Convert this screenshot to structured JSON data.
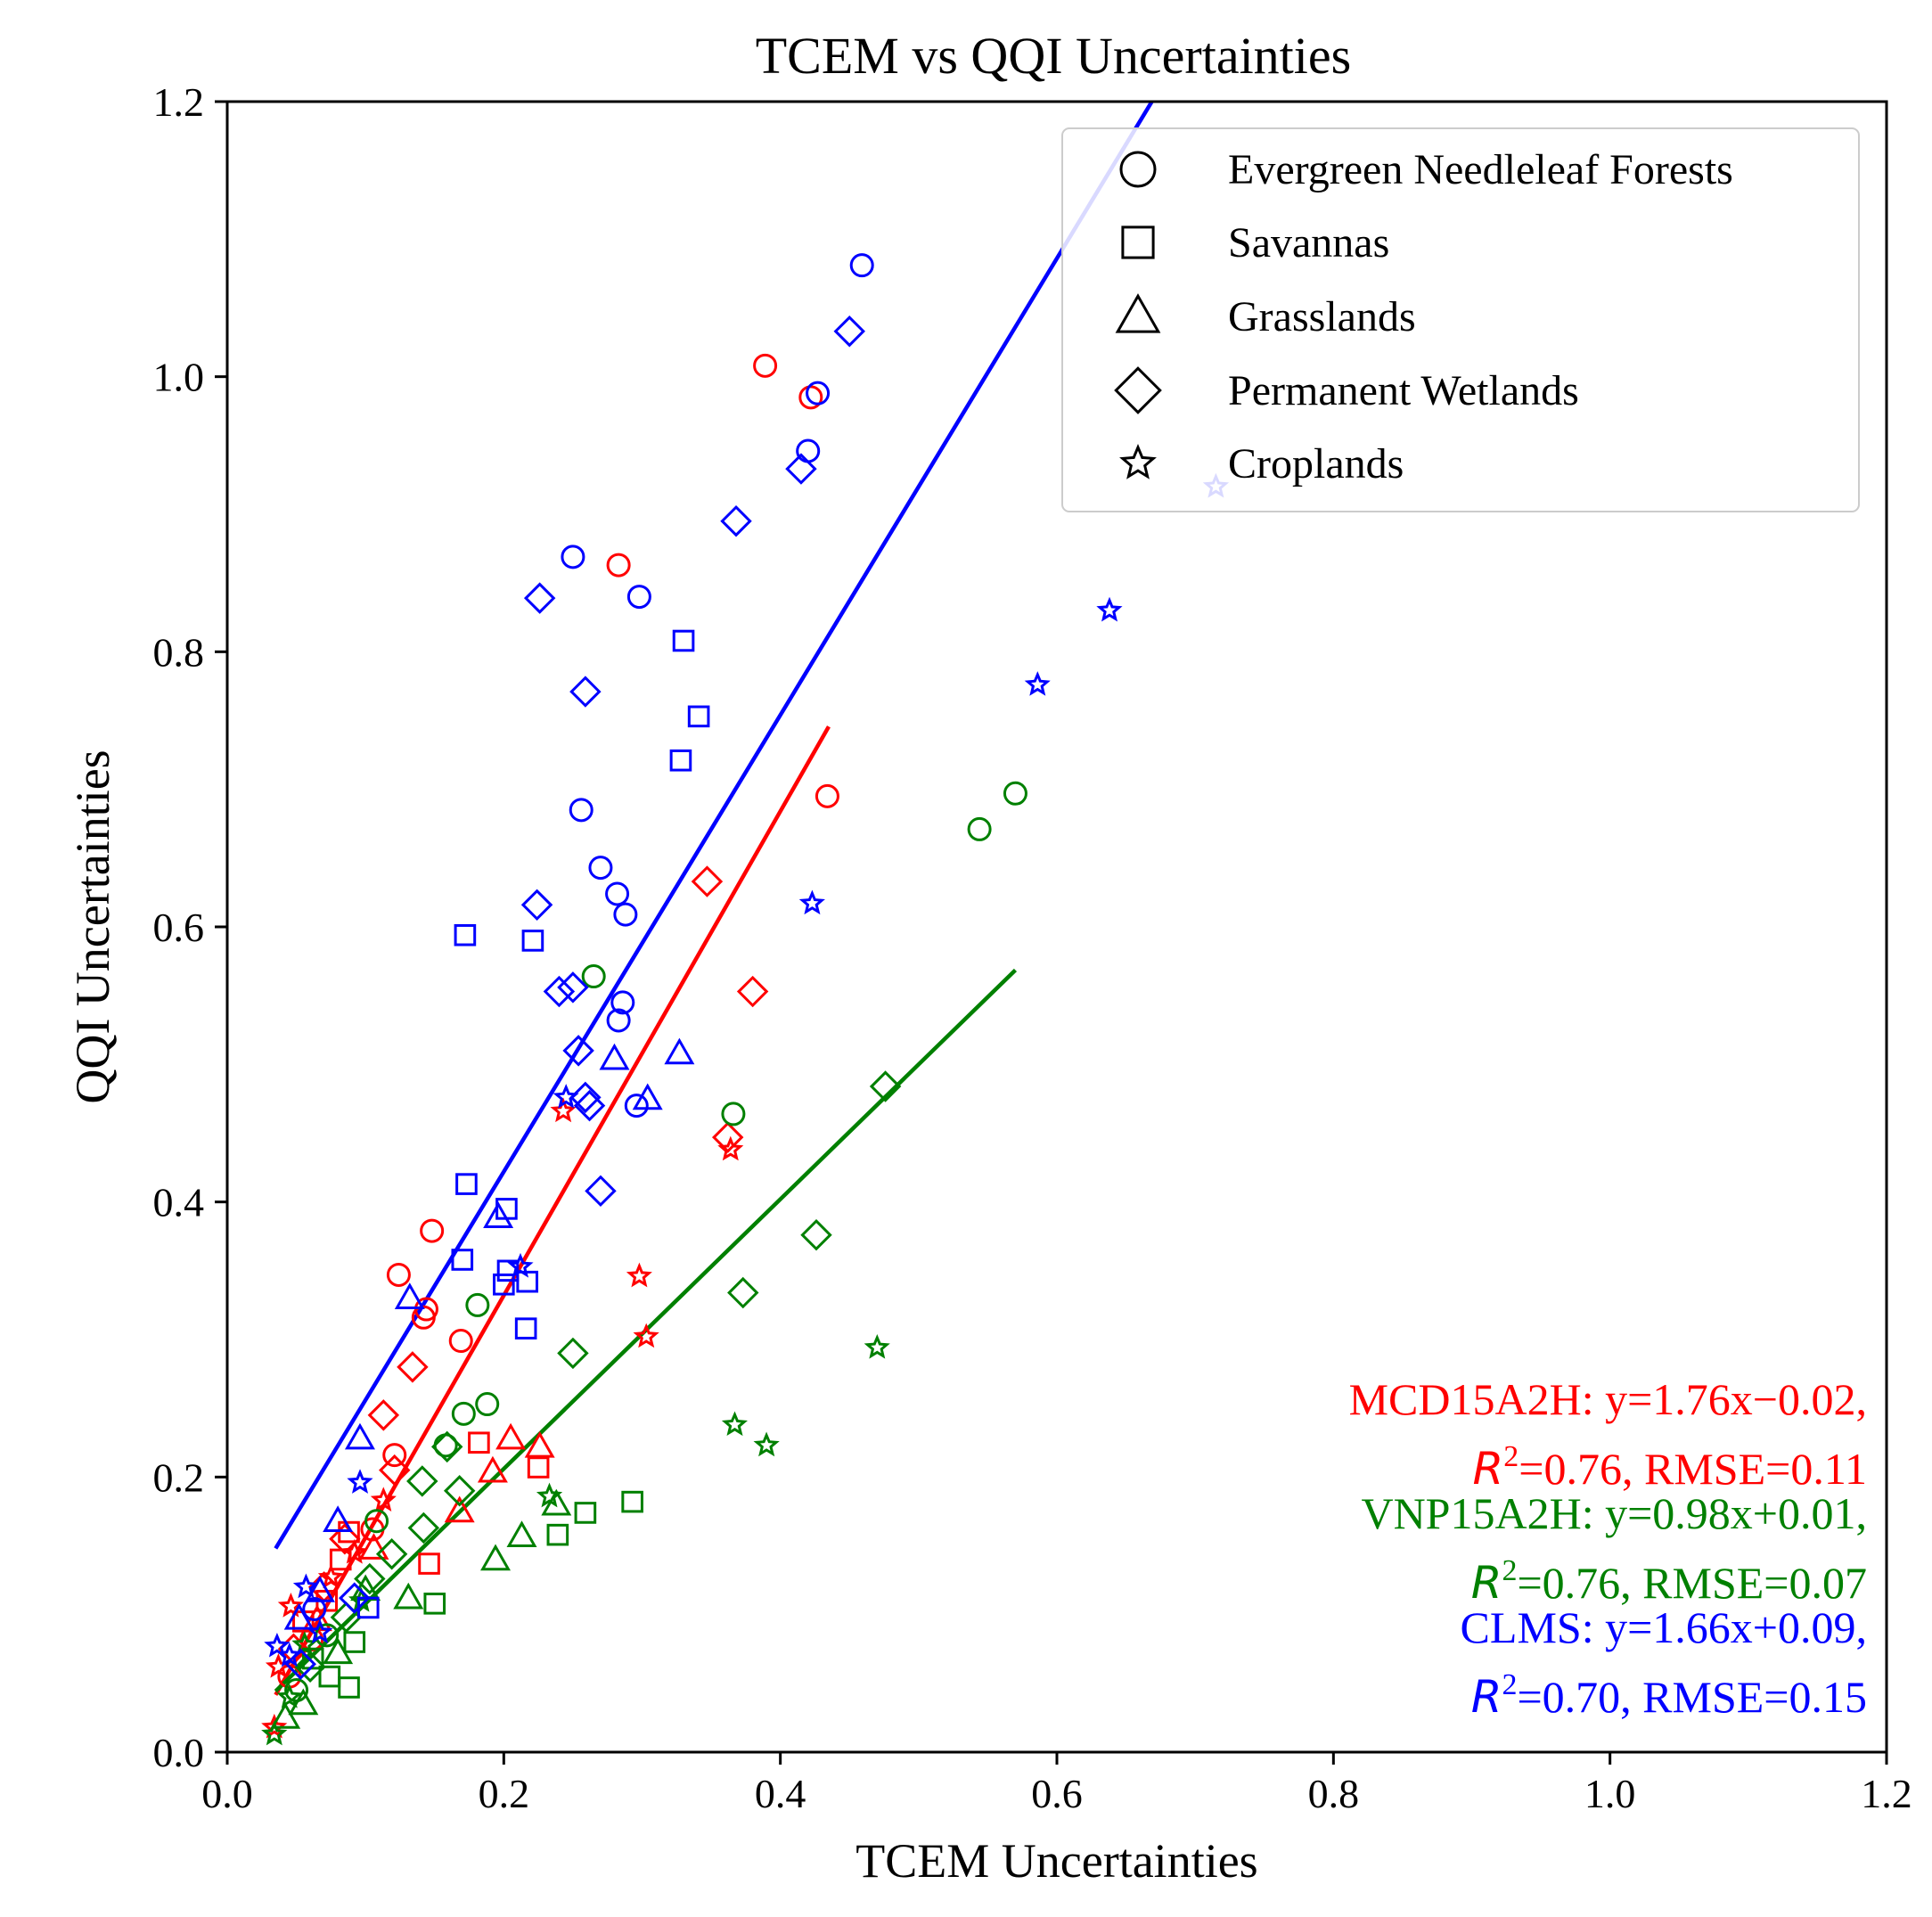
{
  "chart_data": {
    "type": "scatter",
    "title": "TCEM vs QQI Uncertainties",
    "xlabel": "TCEM Uncertainties",
    "ylabel": "QQI Uncertainties",
    "xlim": [
      0.0,
      1.2
    ],
    "ylim": [
      0.0,
      1.2
    ],
    "x_ticks": [
      "0.0",
      "0.2",
      "0.4",
      "0.6",
      "0.8",
      "1.0",
      "1.2"
    ],
    "y_ticks": [
      "0.0",
      "0.2",
      "0.4",
      "0.6",
      "0.8",
      "1.0",
      "1.2"
    ],
    "grid": false,
    "legend_position": "top-right",
    "legend": [
      {
        "label": "Evergreen Needleleaf Forests",
        "marker": "circle"
      },
      {
        "label": "Savannas",
        "marker": "square"
      },
      {
        "label": "Grasslands",
        "marker": "triangle"
      },
      {
        "label": "Permanent Wetlands",
        "marker": "diamond"
      },
      {
        "label": "Croplands",
        "marker": "star"
      }
    ],
    "series": [
      {
        "name": "MCD15A2H",
        "color": "#ff0000",
        "fit": {
          "slope": 1.76,
          "intercept": -0.02,
          "x_range": [
            0.035,
            0.435
          ]
        },
        "stats_line1": "MCD15A2H: y=1.76x−0.02,",
        "stats_r2_value": "=0.76, RMSE=0.11",
        "points": [
          {
            "x": 0.389,
            "y": 1.008,
            "m": "circle"
          },
          {
            "x": 0.422,
            "y": 0.985,
            "m": "circle"
          },
          {
            "x": 0.283,
            "y": 0.863,
            "m": "circle"
          },
          {
            "x": 0.434,
            "y": 0.695,
            "m": "circle"
          },
          {
            "x": 0.148,
            "y": 0.379,
            "m": "circle"
          },
          {
            "x": 0.124,
            "y": 0.347,
            "m": "circle"
          },
          {
            "x": 0.144,
            "y": 0.322,
            "m": "circle"
          },
          {
            "x": 0.142,
            "y": 0.316,
            "m": "circle"
          },
          {
            "x": 0.169,
            "y": 0.299,
            "m": "circle"
          },
          {
            "x": 0.121,
            "y": 0.216,
            "m": "circle"
          },
          {
            "x": 0.105,
            "y": 0.162,
            "m": "circle"
          },
          {
            "x": 0.061,
            "y": 0.082,
            "m": "circle"
          },
          {
            "x": 0.045,
            "y": 0.055,
            "m": "circle"
          },
          {
            "x": 0.182,
            "y": 0.225,
            "m": "square"
          },
          {
            "x": 0.225,
            "y": 0.207,
            "m": "square"
          },
          {
            "x": 0.146,
            "y": 0.137,
            "m": "square"
          },
          {
            "x": 0.082,
            "y": 0.14,
            "m": "square"
          },
          {
            "x": 0.088,
            "y": 0.16,
            "m": "square"
          },
          {
            "x": 0.072,
            "y": 0.11,
            "m": "square"
          },
          {
            "x": 0.055,
            "y": 0.095,
            "m": "square"
          },
          {
            "x": 0.205,
            "y": 0.228,
            "m": "triangle"
          },
          {
            "x": 0.226,
            "y": 0.222,
            "m": "triangle"
          },
          {
            "x": 0.192,
            "y": 0.204,
            "m": "triangle"
          },
          {
            "x": 0.168,
            "y": 0.175,
            "m": "triangle"
          },
          {
            "x": 0.106,
            "y": 0.148,
            "m": "triangle"
          },
          {
            "x": 0.065,
            "y": 0.096,
            "m": "triangle"
          },
          {
            "x": 0.347,
            "y": 0.633,
            "m": "diamond"
          },
          {
            "x": 0.38,
            "y": 0.553,
            "m": "diamond"
          },
          {
            "x": 0.362,
            "y": 0.447,
            "m": "diamond"
          },
          {
            "x": 0.134,
            "y": 0.28,
            "m": "diamond"
          },
          {
            "x": 0.113,
            "y": 0.245,
            "m": "diamond"
          },
          {
            "x": 0.121,
            "y": 0.205,
            "m": "diamond"
          },
          {
            "x": 0.085,
            "y": 0.155,
            "m": "diamond"
          },
          {
            "x": 0.07,
            "y": 0.12,
            "m": "diamond"
          },
          {
            "x": 0.048,
            "y": 0.075,
            "m": "diamond"
          },
          {
            "x": 0.243,
            "y": 0.466,
            "m": "star"
          },
          {
            "x": 0.364,
            "y": 0.438,
            "m": "star"
          },
          {
            "x": 0.298,
            "y": 0.346,
            "m": "star"
          },
          {
            "x": 0.303,
            "y": 0.302,
            "m": "star"
          },
          {
            "x": 0.113,
            "y": 0.183,
            "m": "star"
          },
          {
            "x": 0.092,
            "y": 0.145,
            "m": "star"
          },
          {
            "x": 0.075,
            "y": 0.127,
            "m": "star"
          },
          {
            "x": 0.046,
            "y": 0.106,
            "m": "star"
          },
          {
            "x": 0.037,
            "y": 0.062,
            "m": "star"
          },
          {
            "x": 0.034,
            "y": 0.018,
            "m": "star"
          }
        ]
      },
      {
        "name": "VNP15A2H",
        "color": "#008000",
        "fit": {
          "slope": 0.98,
          "intercept": 0.01,
          "x_range": [
            0.035,
            0.57
          ]
        },
        "stats_line1": "VNP15A2H: y=0.98x+0.01,",
        "stats_r2_value": "=0.76, RMSE=0.07",
        "points": [
          {
            "x": 0.57,
            "y": 0.697,
            "m": "circle"
          },
          {
            "x": 0.544,
            "y": 0.671,
            "m": "circle"
          },
          {
            "x": 0.265,
            "y": 0.564,
            "m": "circle"
          },
          {
            "x": 0.366,
            "y": 0.464,
            "m": "circle"
          },
          {
            "x": 0.181,
            "y": 0.325,
            "m": "circle"
          },
          {
            "x": 0.188,
            "y": 0.253,
            "m": "circle"
          },
          {
            "x": 0.171,
            "y": 0.246,
            "m": "circle"
          },
          {
            "x": 0.158,
            "y": 0.223,
            "m": "circle"
          },
          {
            "x": 0.108,
            "y": 0.168,
            "m": "circle"
          },
          {
            "x": 0.072,
            "y": 0.085,
            "m": "circle"
          },
          {
            "x": 0.05,
            "y": 0.045,
            "m": "circle"
          },
          {
            "x": 0.293,
            "y": 0.182,
            "m": "square"
          },
          {
            "x": 0.259,
            "y": 0.174,
            "m": "square"
          },
          {
            "x": 0.239,
            "y": 0.158,
            "m": "square"
          },
          {
            "x": 0.15,
            "y": 0.108,
            "m": "square"
          },
          {
            "x": 0.092,
            "y": 0.08,
            "m": "square"
          },
          {
            "x": 0.088,
            "y": 0.047,
            "m": "square"
          },
          {
            "x": 0.074,
            "y": 0.055,
            "m": "square"
          },
          {
            "x": 0.062,
            "y": 0.068,
            "m": "square"
          },
          {
            "x": 0.238,
            "y": 0.18,
            "m": "triangle"
          },
          {
            "x": 0.213,
            "y": 0.157,
            "m": "triangle"
          },
          {
            "x": 0.194,
            "y": 0.14,
            "m": "triangle"
          },
          {
            "x": 0.131,
            "y": 0.112,
            "m": "triangle"
          },
          {
            "x": 0.1,
            "y": 0.118,
            "m": "triangle"
          },
          {
            "x": 0.08,
            "y": 0.072,
            "m": "triangle"
          },
          {
            "x": 0.055,
            "y": 0.035,
            "m": "triangle"
          },
          {
            "x": 0.042,
            "y": 0.025,
            "m": "triangle"
          },
          {
            "x": 0.476,
            "y": 0.484,
            "m": "diamond"
          },
          {
            "x": 0.426,
            "y": 0.376,
            "m": "diamond"
          },
          {
            "x": 0.373,
            "y": 0.334,
            "m": "diamond"
          },
          {
            "x": 0.25,
            "y": 0.29,
            "m": "diamond"
          },
          {
            "x": 0.159,
            "y": 0.222,
            "m": "diamond"
          },
          {
            "x": 0.141,
            "y": 0.197,
            "m": "diamond"
          },
          {
            "x": 0.168,
            "y": 0.19,
            "m": "diamond"
          },
          {
            "x": 0.142,
            "y": 0.163,
            "m": "diamond"
          },
          {
            "x": 0.119,
            "y": 0.144,
            "m": "diamond"
          },
          {
            "x": 0.103,
            "y": 0.126,
            "m": "diamond"
          },
          {
            "x": 0.086,
            "y": 0.098,
            "m": "diamond"
          },
          {
            "x": 0.06,
            "y": 0.062,
            "m": "diamond"
          },
          {
            "x": 0.47,
            "y": 0.294,
            "m": "star"
          },
          {
            "x": 0.367,
            "y": 0.238,
            "m": "star"
          },
          {
            "x": 0.39,
            "y": 0.223,
            "m": "star"
          },
          {
            "x": 0.233,
            "y": 0.186,
            "m": "star"
          },
          {
            "x": 0.097,
            "y": 0.11,
            "m": "star"
          },
          {
            "x": 0.056,
            "y": 0.078,
            "m": "star"
          },
          {
            "x": 0.045,
            "y": 0.04,
            "m": "star"
          },
          {
            "x": 0.034,
            "y": 0.013,
            "m": "star"
          }
        ]
      },
      {
        "name": "CLMS",
        "color": "#0000ff",
        "fit": {
          "slope": 1.66,
          "intercept": 0.09,
          "x_range": [
            0.035,
            0.673
          ]
        },
        "stats_line1": "CLMS: y=1.66x+0.09,",
        "stats_r2_value": "=0.70, RMSE=0.15",
        "points": [
          {
            "x": 0.459,
            "y": 1.081,
            "m": "circle"
          },
          {
            "x": 0.427,
            "y": 0.988,
            "m": "circle"
          },
          {
            "x": 0.42,
            "y": 0.946,
            "m": "circle"
          },
          {
            "x": 0.25,
            "y": 0.869,
            "m": "circle"
          },
          {
            "x": 0.298,
            "y": 0.84,
            "m": "circle"
          },
          {
            "x": 0.256,
            "y": 0.685,
            "m": "circle"
          },
          {
            "x": 0.27,
            "y": 0.643,
            "m": "circle"
          },
          {
            "x": 0.282,
            "y": 0.624,
            "m": "circle"
          },
          {
            "x": 0.288,
            "y": 0.609,
            "m": "circle"
          },
          {
            "x": 0.286,
            "y": 0.545,
            "m": "circle"
          },
          {
            "x": 0.283,
            "y": 0.532,
            "m": "circle"
          },
          {
            "x": 0.296,
            "y": 0.47,
            "m": "circle"
          },
          {
            "x": 0.063,
            "y": 0.104,
            "m": "circle"
          },
          {
            "x": 0.33,
            "y": 0.808,
            "m": "square"
          },
          {
            "x": 0.341,
            "y": 0.753,
            "m": "square"
          },
          {
            "x": 0.328,
            "y": 0.721,
            "m": "square"
          },
          {
            "x": 0.172,
            "y": 0.594,
            "m": "square"
          },
          {
            "x": 0.221,
            "y": 0.59,
            "m": "square"
          },
          {
            "x": 0.173,
            "y": 0.413,
            "m": "square"
          },
          {
            "x": 0.202,
            "y": 0.395,
            "m": "square"
          },
          {
            "x": 0.17,
            "y": 0.358,
            "m": "square"
          },
          {
            "x": 0.203,
            "y": 0.35,
            "m": "square"
          },
          {
            "x": 0.217,
            "y": 0.342,
            "m": "square"
          },
          {
            "x": 0.2,
            "y": 0.34,
            "m": "square"
          },
          {
            "x": 0.216,
            "y": 0.308,
            "m": "square"
          },
          {
            "x": 0.102,
            "y": 0.105,
            "m": "square"
          },
          {
            "x": 0.327,
            "y": 0.508,
            "m": "triangle"
          },
          {
            "x": 0.28,
            "y": 0.504,
            "m": "triangle"
          },
          {
            "x": 0.304,
            "y": 0.475,
            "m": "triangle"
          },
          {
            "x": 0.196,
            "y": 0.389,
            "m": "triangle"
          },
          {
            "x": 0.132,
            "y": 0.33,
            "m": "triangle"
          },
          {
            "x": 0.096,
            "y": 0.228,
            "m": "triangle"
          },
          {
            "x": 0.08,
            "y": 0.168,
            "m": "triangle"
          },
          {
            "x": 0.067,
            "y": 0.117,
            "m": "triangle"
          },
          {
            "x": 0.052,
            "y": 0.097,
            "m": "triangle"
          },
          {
            "x": 0.45,
            "y": 1.033,
            "m": "diamond"
          },
          {
            "x": 0.415,
            "y": 0.933,
            "m": "diamond"
          },
          {
            "x": 0.368,
            "y": 0.895,
            "m": "diamond"
          },
          {
            "x": 0.226,
            "y": 0.839,
            "m": "diamond"
          },
          {
            "x": 0.259,
            "y": 0.771,
            "m": "diamond"
          },
          {
            "x": 0.224,
            "y": 0.616,
            "m": "diamond"
          },
          {
            "x": 0.25,
            "y": 0.556,
            "m": "diamond"
          },
          {
            "x": 0.24,
            "y": 0.553,
            "m": "diamond"
          },
          {
            "x": 0.254,
            "y": 0.51,
            "m": "diamond"
          },
          {
            "x": 0.259,
            "y": 0.476,
            "m": "diamond"
          },
          {
            "x": 0.262,
            "y": 0.47,
            "m": "diamond"
          },
          {
            "x": 0.27,
            "y": 0.408,
            "m": "diamond"
          },
          {
            "x": 0.092,
            "y": 0.112,
            "m": "diamond"
          },
          {
            "x": 0.053,
            "y": 0.064,
            "m": "diamond"
          },
          {
            "x": 0.638,
            "y": 0.83,
            "m": "star"
          },
          {
            "x": 0.586,
            "y": 0.776,
            "m": "star"
          },
          {
            "x": 0.715,
            "y": 0.92,
            "m": "star"
          },
          {
            "x": 0.423,
            "y": 0.617,
            "m": "star"
          },
          {
            "x": 0.245,
            "y": 0.476,
            "m": "star"
          },
          {
            "x": 0.212,
            "y": 0.353,
            "m": "star"
          },
          {
            "x": 0.096,
            "y": 0.196,
            "m": "star"
          },
          {
            "x": 0.057,
            "y": 0.12,
            "m": "star"
          },
          {
            "x": 0.067,
            "y": 0.087,
            "m": "star"
          },
          {
            "x": 0.036,
            "y": 0.077,
            "m": "star"
          },
          {
            "x": 0.045,
            "y": 0.07,
            "m": "star"
          }
        ]
      }
    ]
  }
}
